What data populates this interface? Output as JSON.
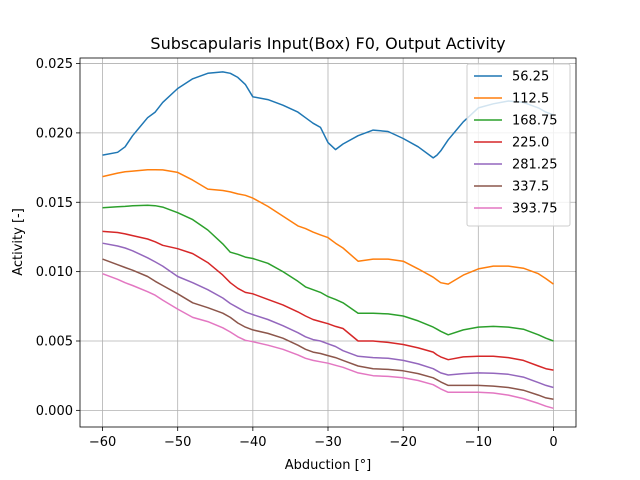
{
  "chart_data": {
    "type": "line",
    "title": "Subscapularis Input(Box) F0, Output Activity",
    "xlabel": "Abduction [°]",
    "ylabel": "Activity [-]",
    "xlim": [
      -63,
      3
    ],
    "ylim": [
      -0.0012,
      0.0254
    ],
    "xticks": [
      -60,
      -50,
      -40,
      -30,
      -20,
      -10,
      0
    ],
    "yticks": [
      0.0,
      0.005,
      0.01,
      0.015,
      0.02,
      0.025
    ],
    "ytick_labels": [
      "0.000",
      "0.005",
      "0.010",
      "0.015",
      "0.020",
      "0.025"
    ],
    "grid": true,
    "legend_position": "top-right",
    "x": [
      -60,
      -58,
      -57,
      -56,
      -54,
      -53,
      -52,
      -50,
      -48,
      -46,
      -44,
      -43,
      -42,
      -41,
      -40,
      -38,
      -36,
      -34,
      -33,
      -32,
      -31,
      -30,
      -29,
      -28,
      -26,
      -24,
      -22,
      -20,
      -18,
      -16,
      -15.5,
      -15,
      -14,
      -12,
      -10,
      -8,
      -6,
      -4,
      -2,
      -1,
      0
    ],
    "series": [
      {
        "name": "56.25",
        "color": "#1f77b4",
        "values": [
          0.0184,
          0.0186,
          0.019,
          0.0198,
          0.0211,
          0.0215,
          0.0222,
          0.0232,
          0.0239,
          0.0243,
          0.0244,
          0.0243,
          0.024,
          0.0235,
          0.0226,
          0.0224,
          0.022,
          0.0215,
          0.0211,
          0.0207,
          0.0204,
          0.0193,
          0.0188,
          0.0192,
          0.0198,
          0.0202,
          0.0201,
          0.0196,
          0.019,
          0.0182,
          0.0184,
          0.0187,
          0.0195,
          0.0208,
          0.0218,
          0.0221,
          0.0223,
          0.0222,
          0.0218,
          0.0215,
          0.0213
        ]
      },
      {
        "name": "112.5",
        "color": "#ff7f0e",
        "values": [
          0.01685,
          0.0171,
          0.0172,
          0.01725,
          0.01735,
          0.01735,
          0.01733,
          0.01715,
          0.0166,
          0.01595,
          0.01585,
          0.01575,
          0.0156,
          0.0155,
          0.0153,
          0.0147,
          0.014,
          0.0133,
          0.0131,
          0.01285,
          0.01265,
          0.01245,
          0.01205,
          0.0117,
          0.01075,
          0.0109,
          0.0109,
          0.01075,
          0.0102,
          0.0096,
          0.0094,
          0.0092,
          0.0091,
          0.00975,
          0.0102,
          0.0104,
          0.0104,
          0.01025,
          0.00985,
          0.0095,
          0.0091
        ]
      },
      {
        "name": "168.75",
        "color": "#2ca02c",
        "values": [
          0.0146,
          0.01468,
          0.0147,
          0.01475,
          0.01478,
          0.01475,
          0.01465,
          0.01425,
          0.01375,
          0.013,
          0.012,
          0.0114,
          0.01125,
          0.01105,
          0.01095,
          0.0106,
          0.01,
          0.0093,
          0.0089,
          0.0087,
          0.0085,
          0.0082,
          0.008,
          0.00775,
          0.007,
          0.007,
          0.00695,
          0.0068,
          0.00645,
          0.006,
          0.00585,
          0.0057,
          0.00545,
          0.0058,
          0.006,
          0.00605,
          0.006,
          0.00585,
          0.00545,
          0.0052,
          0.005
        ]
      },
      {
        "name": "225.0",
        "color": "#d62728",
        "values": [
          0.0129,
          0.01282,
          0.01272,
          0.0126,
          0.01235,
          0.01215,
          0.0119,
          0.01165,
          0.0113,
          0.01065,
          0.00975,
          0.0092,
          0.0088,
          0.0085,
          0.0084,
          0.008,
          0.0076,
          0.0071,
          0.0068,
          0.00655,
          0.0064,
          0.00625,
          0.00605,
          0.0059,
          0.005,
          0.005,
          0.0049,
          0.00475,
          0.0045,
          0.0042,
          0.004,
          0.00385,
          0.00365,
          0.00385,
          0.0039,
          0.0039,
          0.0038,
          0.0036,
          0.0032,
          0.003,
          0.0029
        ]
      },
      {
        "name": "281.25",
        "color": "#9467bd",
        "values": [
          0.01205,
          0.01185,
          0.0117,
          0.0115,
          0.011,
          0.0107,
          0.0104,
          0.00965,
          0.0092,
          0.0087,
          0.0081,
          0.0077,
          0.0074,
          0.0071,
          0.0069,
          0.00655,
          0.0061,
          0.0056,
          0.0053,
          0.0051,
          0.005,
          0.0048,
          0.0046,
          0.0043,
          0.0039,
          0.0038,
          0.00375,
          0.0036,
          0.00335,
          0.003,
          0.00285,
          0.0027,
          0.00255,
          0.00265,
          0.0027,
          0.00268,
          0.0026,
          0.0024,
          0.002,
          0.0018,
          0.00165
        ]
      },
      {
        "name": "337.5",
        "color": "#8c564b",
        "values": [
          0.0109,
          0.0105,
          0.0103,
          0.0101,
          0.00965,
          0.0093,
          0.009,
          0.0084,
          0.00775,
          0.0074,
          0.007,
          0.0067,
          0.0063,
          0.006,
          0.0058,
          0.00555,
          0.0052,
          0.0047,
          0.0044,
          0.0042,
          0.0041,
          0.00395,
          0.0038,
          0.0036,
          0.0032,
          0.003,
          0.00295,
          0.00285,
          0.00265,
          0.00235,
          0.0022,
          0.00205,
          0.0018,
          0.0018,
          0.0018,
          0.00175,
          0.00165,
          0.00145,
          0.0011,
          0.0009,
          0.0008
        ]
      },
      {
        "name": "393.75",
        "color": "#e377c2",
        "values": [
          0.00985,
          0.00945,
          0.0092,
          0.009,
          0.00855,
          0.0083,
          0.00795,
          0.0073,
          0.0067,
          0.0064,
          0.00595,
          0.00565,
          0.0053,
          0.00505,
          0.00495,
          0.0047,
          0.0044,
          0.004,
          0.00375,
          0.0036,
          0.0035,
          0.0034,
          0.00325,
          0.0031,
          0.0027,
          0.0025,
          0.00245,
          0.00235,
          0.00215,
          0.00185,
          0.0017,
          0.00155,
          0.0013,
          0.0013,
          0.0013,
          0.00125,
          0.0011,
          0.00085,
          0.0005,
          0.0003,
          0.00015
        ]
      }
    ]
  }
}
